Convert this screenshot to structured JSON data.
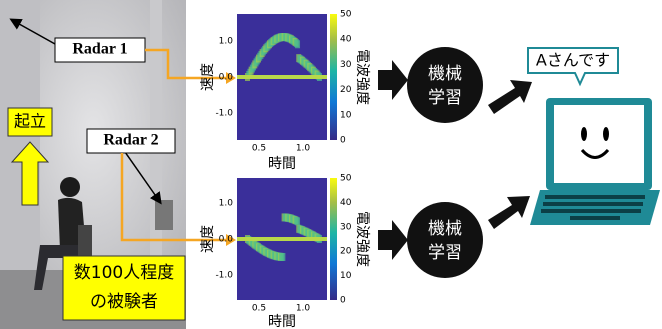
{
  "photo": {
    "radar1": "Radar 1",
    "radar2": "Radar 2",
    "stand": "起立",
    "subjects": [
      "数100人程度",
      "の被験者"
    ]
  },
  "spectrograms": [
    {
      "y_label": "速度",
      "x_label": "時間",
      "y_ticks": [
        "1.0",
        "0.0",
        "-1.0"
      ],
      "x_ticks": [
        "0.5",
        "1.0"
      ],
      "colorbar_ticks": [
        "50",
        "40",
        "30",
        "20",
        "10",
        "0"
      ],
      "colorbar_label": "電波強度"
    },
    {
      "y_label": "速度",
      "x_label": "時間",
      "y_ticks": [
        "1.0",
        "0.0",
        "-1.0"
      ],
      "x_ticks": [
        "0.5",
        "1.0"
      ],
      "colorbar_ticks": [
        "50",
        "40",
        "30",
        "20",
        "10",
        "0"
      ],
      "colorbar_label": "電波強度"
    }
  ],
  "ml_nodes": [
    {
      "lines": [
        "機械",
        "学習"
      ]
    },
    {
      "lines": [
        "機械",
        "学習"
      ]
    }
  ],
  "speech_bubble": "Aさんです"
}
